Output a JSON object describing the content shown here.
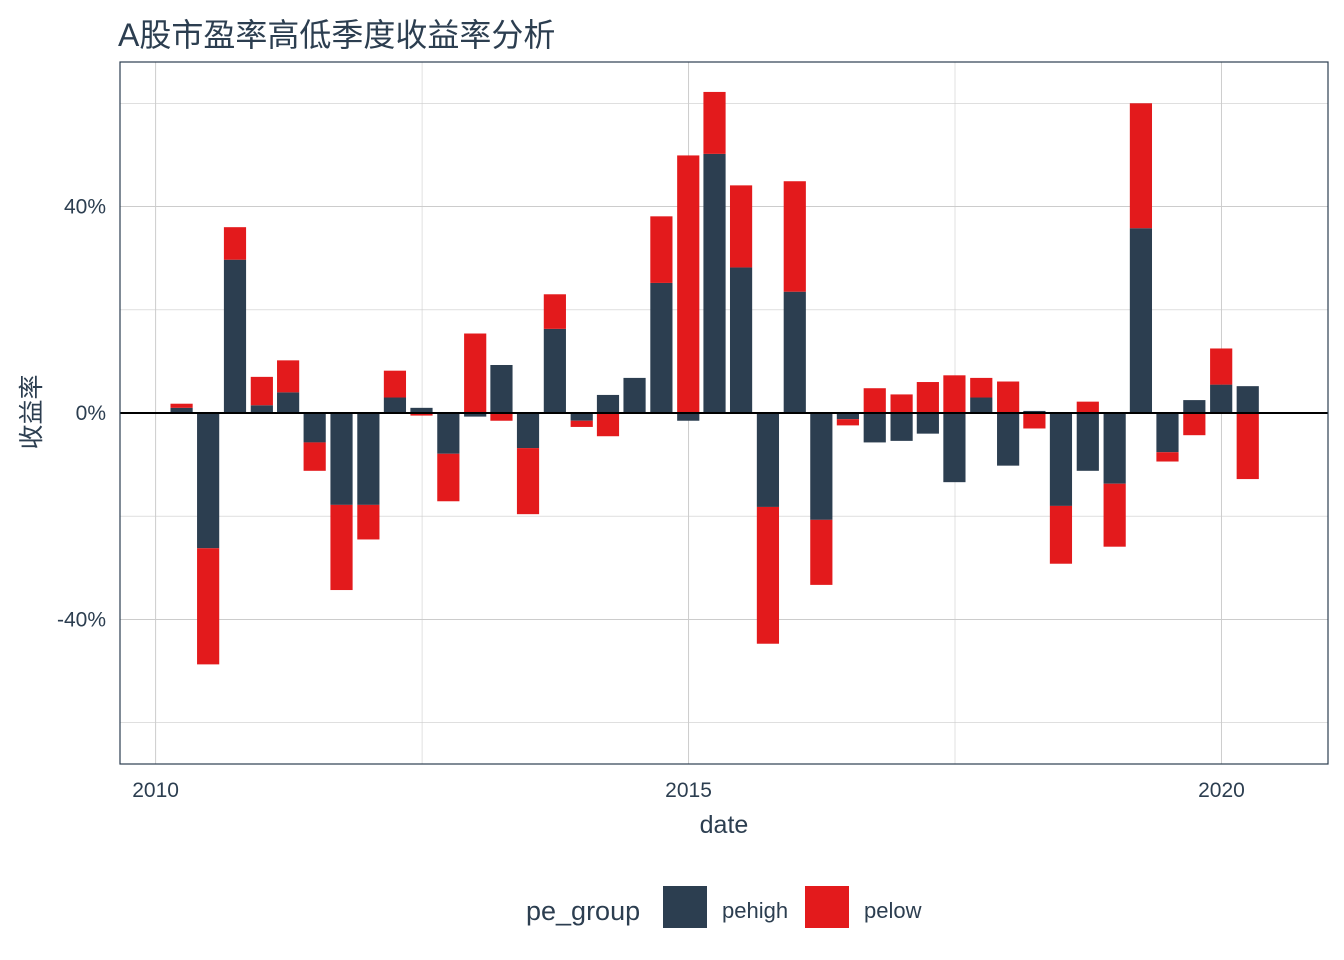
{
  "chart_data": {
    "type": "bar",
    "title": "A股市盈率高低季度收益率分析",
    "xlabel": "date",
    "ylabel": "收益率",
    "x_ticks": [
      "2010",
      "2015",
      "2020"
    ],
    "y_ticks": [
      "-40%",
      "0%",
      "40%"
    ],
    "xlim": [
      "2009-09-01",
      "2020-12-31"
    ],
    "ylim": [
      -0.68,
      0.68
    ],
    "grid": true,
    "legend": {
      "title": "pe_group",
      "position": "bottom"
    },
    "colors": {
      "pehigh": "#2c3e50",
      "pelow": "#e31a1c",
      "panel_border": "#2c3e50",
      "grid": "#cccccc",
      "zero_line": "#000000"
    },
    "dates": [
      "2010-03-31",
      "2010-06-30",
      "2010-09-30",
      "2010-12-31",
      "2011-03-31",
      "2011-06-30",
      "2011-09-30",
      "2011-12-31",
      "2012-03-31",
      "2012-06-30",
      "2012-09-30",
      "2012-12-31",
      "2013-03-31",
      "2013-06-30",
      "2013-09-30",
      "2013-12-31",
      "2014-03-31",
      "2014-06-30",
      "2014-09-30",
      "2014-12-31",
      "2015-03-31",
      "2015-06-30",
      "2015-09-30",
      "2015-12-31",
      "2016-03-31",
      "2016-06-30",
      "2016-09-30",
      "2016-12-31",
      "2017-03-31",
      "2017-06-30",
      "2017-09-30",
      "2017-12-31",
      "2018-03-31",
      "2018-06-30",
      "2018-09-30",
      "2018-12-31",
      "2019-03-31",
      "2019-06-30",
      "2019-09-30",
      "2019-12-31",
      "2020-03-31"
    ],
    "series": [
      {
        "name": "pehigh",
        "values": [
          0.01,
          -0.262,
          0.297,
          0.015,
          0.04,
          -0.057,
          -0.178,
          -0.178,
          0.03,
          0.01,
          -0.079,
          -0.007,
          0.093,
          -0.068,
          0.163,
          -0.015,
          0.035,
          0.068,
          0.252,
          -0.015,
          0.502,
          0.282,
          -0.182,
          0.235,
          -0.207,
          -0.012,
          -0.057,
          -0.054,
          -0.04,
          -0.134,
          0.03,
          -0.102,
          0.004,
          -0.18,
          -0.112,
          -0.137,
          0.358,
          -0.076,
          0.025,
          0.055,
          0.052
        ]
      },
      {
        "name": "pelow",
        "values": [
          0.008,
          -0.225,
          0.063,
          0.055,
          0.062,
          -0.055,
          -0.165,
          -0.067,
          0.052,
          -0.005,
          -0.092,
          0.154,
          -0.015,
          -0.128,
          0.067,
          -0.012,
          -0.045,
          0.0,
          0.129,
          0.499,
          0.12,
          0.159,
          -0.265,
          0.214,
          -0.126,
          -0.012,
          0.048,
          0.036,
          0.06,
          0.073,
          0.038,
          0.061,
          -0.03,
          -0.112,
          0.022,
          -0.122,
          0.242,
          -0.018,
          -0.043,
          0.07,
          -0.128
        ]
      }
    ]
  }
}
